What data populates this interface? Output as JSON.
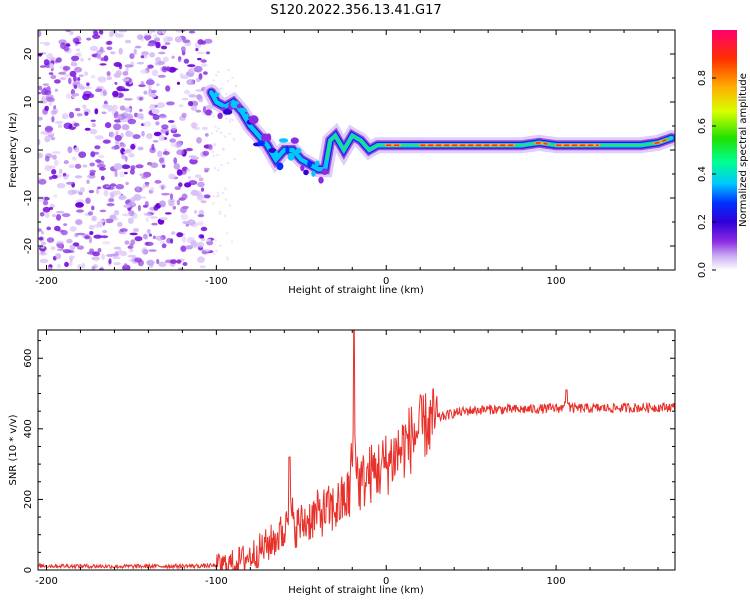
{
  "title": "S120.2022.356.13.41.G17",
  "chart_data": [
    {
      "type": "heatmap",
      "xlabel": "Height of straight line (km)",
      "ylabel": "Frequency (Hz)",
      "xlim": [
        -205,
        170
      ],
      "ylim": [
        -25,
        25
      ],
      "x_ticks": [
        -200,
        -100,
        0,
        100
      ],
      "y_ticks": [
        -20,
        -10,
        0,
        10,
        20
      ],
      "colorbar": {
        "label": "Normalized spectral amplitude",
        "range": [
          0,
          1
        ],
        "ticks": [
          "0.0",
          "0.2",
          "0.4",
          "0.6",
          "0.8"
        ],
        "colors": [
          "#ffffff",
          "#c9a8f2",
          "#8a2be2",
          "#3000d8",
          "#0030ff",
          "#00c8ff",
          "#00ff90",
          "#20e000",
          "#d8ff00",
          "#ffb000",
          "#ff3000",
          "#ff0070"
        ]
      },
      "ridge": {
        "x": [
          -103,
          -100,
          -95,
          -90,
          -85,
          -80,
          -75,
          -70,
          -65,
          -60,
          -55,
          -50,
          -45,
          -40,
          -36,
          -33,
          -30,
          -25,
          -20,
          -15,
          -10,
          -5,
          0,
          20,
          60,
          80,
          90,
          100,
          120,
          150,
          160,
          168
        ],
        "y": [
          12,
          10,
          9,
          10,
          8,
          5,
          3,
          1,
          -2,
          0,
          0,
          -2,
          -3,
          -4,
          -4,
          2,
          3,
          0,
          3,
          2,
          0,
          1,
          1,
          1,
          1,
          1,
          1.5,
          1,
          1,
          1,
          1.5,
          2.5
        ]
      },
      "noise_region_x": [
        -205,
        -103
      ]
    },
    {
      "type": "line",
      "xlabel": "Height of straight line (km)",
      "ylabel": "SNR (10 * v/v)",
      "xlim": [
        -205,
        170
      ],
      "ylim": [
        0,
        680
      ],
      "x_ticks": [
        -200,
        -100,
        0,
        100
      ],
      "y_ticks": [
        0,
        200,
        400,
        600
      ],
      "color": "#e8312a",
      "trend": {
        "x": [
          -205,
          -150,
          -100,
          -90,
          -80,
          -70,
          -60,
          -50,
          -40,
          -30,
          -20,
          -10,
          0,
          10,
          20,
          30,
          40,
          50,
          60,
          80,
          100,
          120,
          150,
          170
        ],
        "y": [
          12,
          10,
          12,
          20,
          40,
          70,
          110,
          130,
          160,
          175,
          220,
          270,
          300,
          350,
          400,
          430,
          445,
          452,
          455,
          455,
          458,
          458,
          460,
          462
        ]
      },
      "spikes": [
        {
          "x": -57,
          "y": 320
        },
        {
          "x": -19,
          "y": 680
        },
        {
          "x": 106,
          "y": 510
        }
      ]
    }
  ]
}
